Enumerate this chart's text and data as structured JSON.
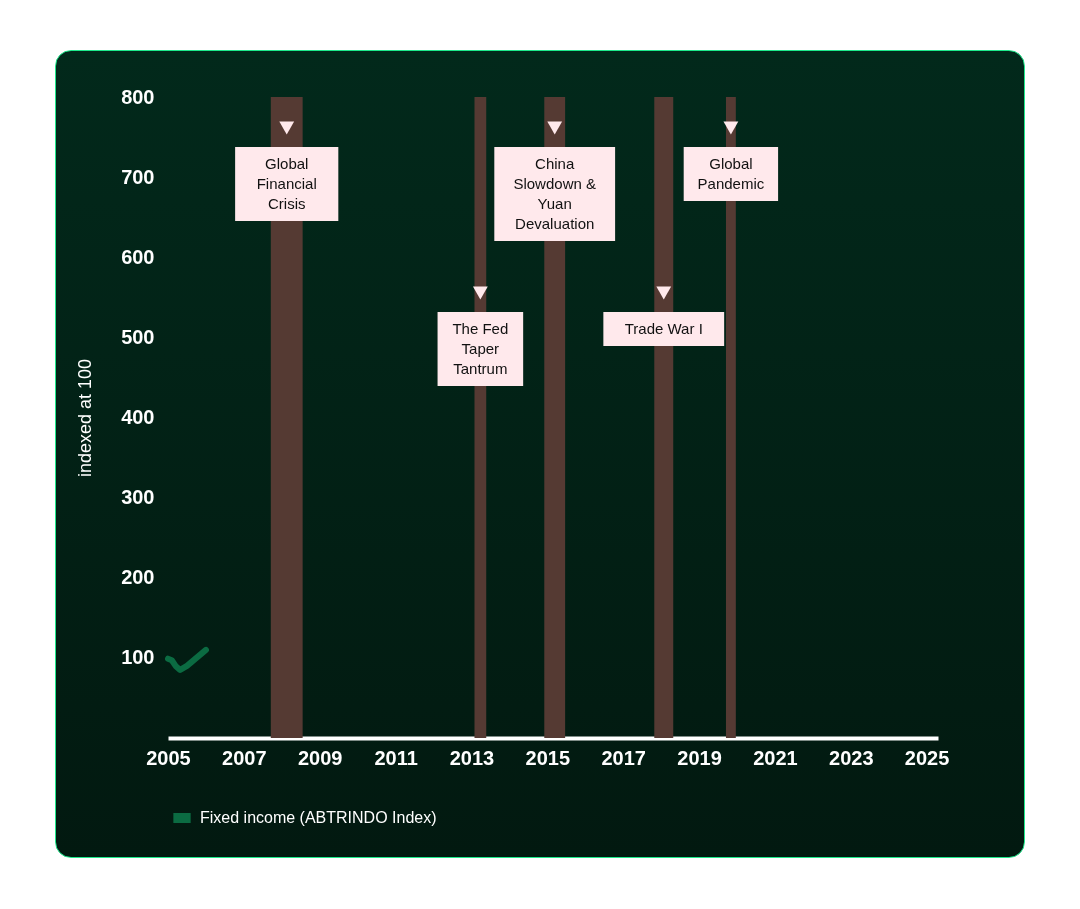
{
  "chart_data": {
    "type": "line",
    "ylabel": "indexed at 100",
    "series": [
      {
        "name": "Fixed income (ABTRINDO Index)",
        "color": "#0b6b42",
        "x": [
          2005,
          2005.1,
          2005.2,
          2005.32,
          2005.5,
          2005.75,
          2006
        ],
        "values": [
          99,
          97,
          90,
          85,
          90,
          100,
          110
        ]
      }
    ],
    "xlim": [
      2005,
      2025.3
    ],
    "xticks": [
      2005,
      2007,
      2009,
      2011,
      2013,
      2015,
      2017,
      2019,
      2021,
      2023,
      2025
    ],
    "ylim": [
      0,
      800
    ],
    "yticks": [
      100,
      200,
      300,
      400,
      500,
      600,
      700,
      800
    ],
    "bands": [
      {
        "axis": "x",
        "from": 2007.71,
        "to": 2008.55,
        "label": "Global Financial Crisis",
        "color": "#553a33"
      },
      {
        "axis": "x",
        "from": 2013.08,
        "to": 2013.39,
        "label": "The Fed Taper Tantrum",
        "color": "#553a33"
      },
      {
        "axis": "x",
        "from": 2014.92,
        "to": 2015.47,
        "label": "China Slowdown & Yuan Devaluation",
        "color": "#553a33"
      },
      {
        "axis": "x",
        "from": 2017.82,
        "to": 2018.32,
        "label": "Trade War I",
        "color": "#553a33"
      },
      {
        "axis": "x",
        "from": 2019.71,
        "to": 2019.97,
        "label": "Global Pandemic",
        "color": "#553a33"
      }
    ],
    "grid": false,
    "legend": "bottom",
    "line_style": "solid",
    "marker": "none"
  }
}
